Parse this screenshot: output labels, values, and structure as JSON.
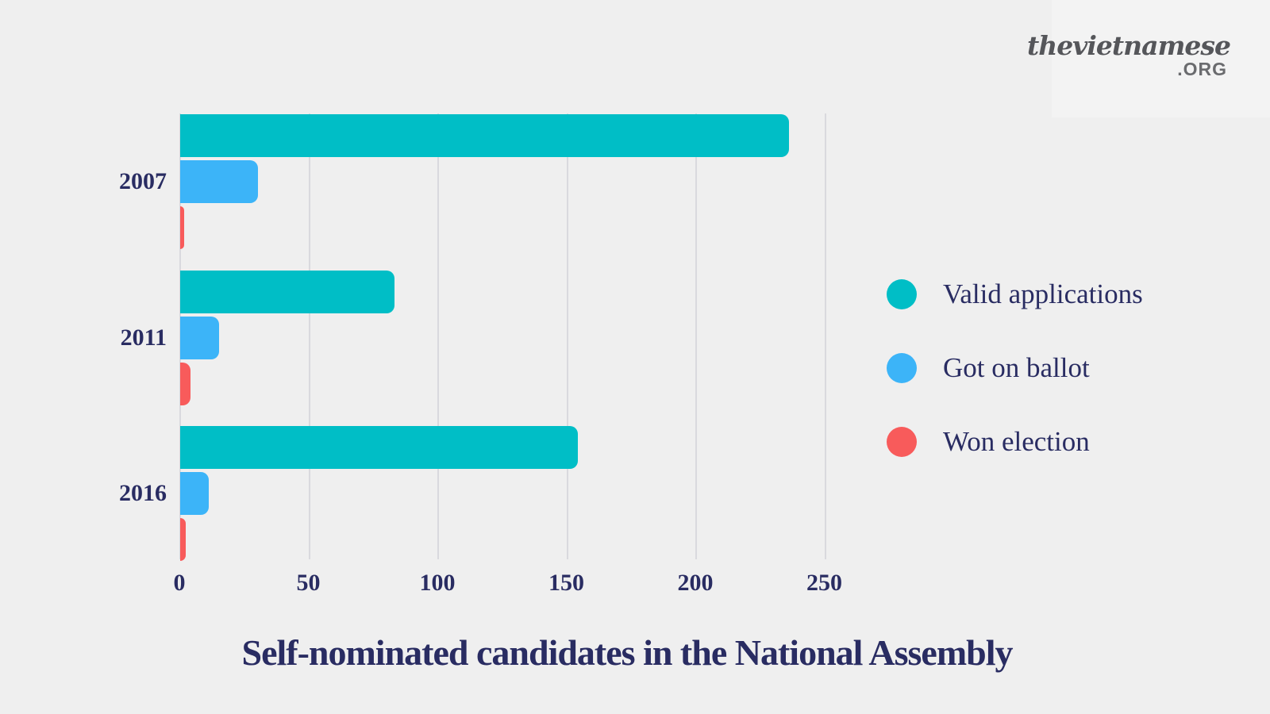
{
  "logo": {
    "brand": "thevietnamese",
    "tld": ".ORG"
  },
  "title": "Self-nominated candidates in the National Assembly",
  "colors": {
    "background": "#efefef",
    "logo_panel": "#f3f3f3",
    "text_navy": "#292c62",
    "gridline": "#d9d9de",
    "teal": "#00bec6",
    "blue": "#3cb4f8",
    "red": "#f85b5b"
  },
  "chart_data": {
    "type": "bar",
    "orientation": "horizontal",
    "title": "Self-nominated candidates in the National Assembly",
    "categories": [
      "2007",
      "2011",
      "2016"
    ],
    "series": [
      {
        "name": "Valid applications",
        "color": "#00bec6",
        "values": [
          236,
          83,
          154
        ]
      },
      {
        "name": "Got on ballot",
        "color": "#3cb4f8",
        "values": [
          30,
          15,
          11
        ]
      },
      {
        "name": "Won election",
        "color": "#f85b5b",
        "values": [
          1,
          4,
          2
        ]
      }
    ],
    "x_ticks": [
      0,
      50,
      100,
      150,
      200,
      250
    ],
    "xlim": [
      0,
      270
    ],
    "grid": true,
    "legend_position": "right"
  }
}
